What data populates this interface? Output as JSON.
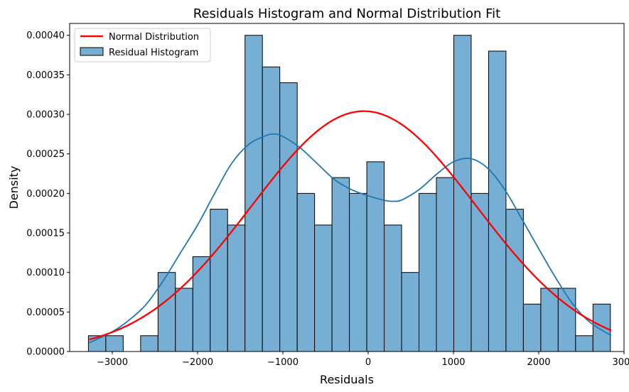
{
  "chart_data": {
    "type": "bar",
    "title": "Residuals Histogram and Normal Distribution Fit",
    "xlabel": "Residuals",
    "ylabel": "Density",
    "xlim": [
      -3500,
      3000
    ],
    "ylim": [
      0,
      0.000415
    ],
    "grid": false,
    "legend_position": "top-left",
    "x_ticks": [
      -3000,
      -2000,
      -1000,
      0,
      1000,
      2000,
      3000
    ],
    "x_tick_labels": [
      "−3000",
      "−2000",
      "−1000",
      "0",
      "1000",
      "2000",
      "3000"
    ],
    "y_ticks": [
      0,
      5e-05,
      0.0001,
      0.00015,
      0.0002,
      0.00025,
      0.0003,
      0.00035,
      0.0004
    ],
    "y_tick_labels": [
      "0.00000",
      "0.00005",
      "0.00010",
      "0.00015",
      "0.00020",
      "0.00025",
      "0.00030",
      "0.00035",
      "0.00040"
    ],
    "histogram": {
      "name": "Residual Histogram",
      "color": "#77aed4",
      "edge_color": "#000000",
      "bin_start": -3280,
      "bin_width": 204,
      "densities": [
        2e-05,
        2e-05,
        0,
        2e-05,
        0.0001,
        8e-05,
        0.00012,
        0.00018,
        0.00016,
        0.0004,
        0.00036,
        0.00034,
        0.0002,
        0.00016,
        0.00022,
        0.0002,
        0.00024,
        0.00016,
        0.0001,
        0.0002,
        0.00022,
        0.0004,
        0.0002,
        0.00038,
        0.00018,
        6e-05,
        8e-05,
        8e-05,
        2e-05,
        6e-05
      ]
    },
    "kde": {
      "color": "#1f77b4",
      "x": [
        -3270,
        -3000,
        -2800,
        -2600,
        -2400,
        -2200,
        -2000,
        -1800,
        -1600,
        -1400,
        -1200,
        -1100,
        -1000,
        -800,
        -600,
        -400,
        -200,
        0,
        200,
        300,
        400,
        600,
        800,
        1000,
        1200,
        1400,
        1600,
        1800,
        2000,
        2200,
        2400,
        2600,
        2850
      ],
      "y": [
        1.1e-05,
        2.5e-05,
        4e-05,
        6e-05,
        9e-05,
        0.000125,
        0.00016,
        0.0002,
        0.000238,
        0.000262,
        0.000273,
        0.000275,
        0.000272,
        0.000258,
        0.000238,
        0.000218,
        0.000205,
        0.000197,
        0.000191,
        0.00019,
        0.000192,
        0.000205,
        0.000224,
        0.00024,
        0.000244,
        0.000232,
        0.000205,
        0.000168,
        0.00013,
        9.3e-05,
        6e-05,
        3.7e-05,
        2e-05
      ]
    },
    "normal_fit": {
      "name": "Normal Distribution",
      "color": "#ff0000",
      "mean": -50,
      "std": 1315,
      "peak": 0.000304,
      "x_range": [
        -3270,
        2850
      ]
    }
  }
}
